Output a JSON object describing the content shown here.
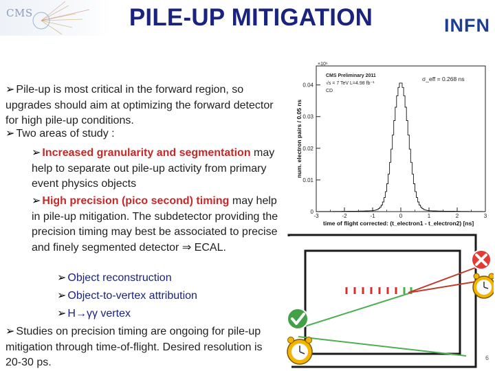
{
  "slide": {
    "title": "PILE-UP MITIGATION",
    "cms_logo_text": "CMS",
    "infn_logo_text": "INFN",
    "page_number": "6"
  },
  "body": {
    "p1": "Pile-up is most critical in the forward region, so upgrades should aim at optimizing the forward detector for high pile-up conditions.",
    "p2": "Two areas of study :",
    "p3_bold": "Increased granularity and segmentation",
    "p3_rest": " may help to separate out pile-up activity from primary event physics objects",
    "p4_bold": "High precision (pico second) timing",
    "p4_rest": " may help in pile-up mitigation. The subdetector providing the precision timing may best be associated to precise and finely segmented detector ",
    "p4_symbol": "⇒",
    "p4_end": " ECAL.",
    "sub_bullets": [
      "Object reconstruction",
      "Object-to-vertex attribution",
      "H→γγ vertex"
    ],
    "p5": "Studies on precision timing are ongoing for pile-up mitigation through time-of-flight. Desired resolution is 20-30 ps."
  },
  "chart_data": {
    "type": "histogram",
    "exponent_label": "×10⁶",
    "ylabel": "num. electron pairs / 0.05 ns",
    "xlabel": "time of flight corrected: (t_electron1 - t_electron2) [ns]",
    "legend_lines": [
      "CMS Preliminary 2011",
      "√s = 7 TeV  L=4.98 fb⁻¹",
      "CD"
    ],
    "annotation": "σ_eff = 0.268 ns",
    "xlim": [
      -3,
      3
    ],
    "ylim": [
      0,
      0.046
    ],
    "x_ticks": [
      -3,
      -2,
      -1,
      0,
      1,
      2,
      3
    ],
    "y_ticks": [
      0,
      0.01,
      0.02,
      0.03,
      0.04
    ],
    "y_tick_labels": [
      "0",
      "0.01",
      "0.02",
      "0.03",
      "0.04"
    ],
    "x_tick_labels": [
      "-3",
      "-2",
      "-1",
      "0",
      "1",
      "2",
      "3"
    ],
    "sigma": 0.268,
    "peak": 0.04,
    "bin_width": 0.05
  },
  "diagram": {
    "description_labels": [],
    "colors": {
      "red_track": "#c0392b",
      "green_track": "#4caf50",
      "cross_badge": "#e53935",
      "check_badge": "#43a047",
      "clock": "#f4b400"
    }
  }
}
